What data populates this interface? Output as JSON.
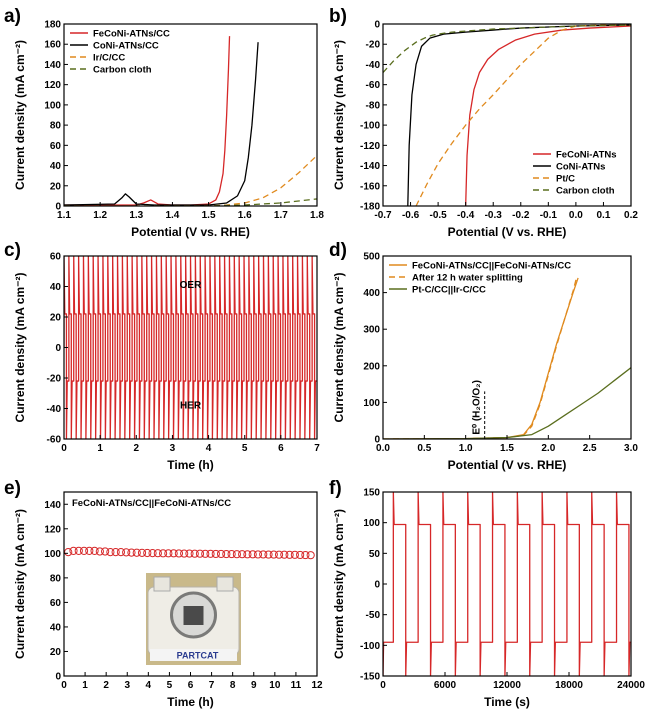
{
  "chart_data": [
    {
      "id": "a",
      "letter": "a)",
      "type": "line",
      "xlabel": "Potential (V vs. RHE)",
      "ylabel": "Current density (mA cm⁻²)",
      "xlim": [
        1.1,
        1.8
      ],
      "ylim": [
        0,
        180
      ],
      "xticks": [
        1.1,
        1.2,
        1.3,
        1.4,
        1.5,
        1.6,
        1.7,
        1.8
      ],
      "yticks": [
        0,
        20,
        40,
        60,
        80,
        100,
        120,
        140,
        160,
        180
      ],
      "legend_position": "top-left",
      "grid": false,
      "series": [
        {
          "name": "FeCoNi-ATNs/CC",
          "color": "#d62728",
          "dash": "solid",
          "x": [
            1.1,
            1.3,
            1.32,
            1.34,
            1.36,
            1.4,
            1.45,
            1.5,
            1.52,
            1.53,
            1.54,
            1.545,
            1.55,
            1.555,
            1.558
          ],
          "y": [
            1,
            1,
            3,
            6,
            2,
            1,
            1,
            2,
            6,
            14,
            32,
            55,
            90,
            135,
            168
          ]
        },
        {
          "name": "CoNi-ATNs/CC",
          "color": "#000000",
          "dash": "solid",
          "x": [
            1.1,
            1.24,
            1.26,
            1.27,
            1.28,
            1.3,
            1.35,
            1.5,
            1.55,
            1.58,
            1.6,
            1.61,
            1.62,
            1.63,
            1.637
          ],
          "y": [
            1,
            2,
            8,
            12,
            9,
            2,
            1,
            1,
            3,
            10,
            25,
            48,
            80,
            125,
            162
          ]
        },
        {
          "name": "Ir/C/CC",
          "color": "#e08a1e",
          "dash": "dashed",
          "x": [
            1.1,
            1.5,
            1.55,
            1.6,
            1.65,
            1.7,
            1.75,
            1.8
          ],
          "y": [
            0,
            0,
            1,
            3,
            8,
            18,
            33,
            50
          ]
        },
        {
          "name": "Carbon cloth",
          "color": "#5a6e1e",
          "dash": "dashed",
          "x": [
            1.1,
            1.5,
            1.6,
            1.7,
            1.8
          ],
          "y": [
            0,
            0,
            1,
            3,
            7
          ]
        }
      ]
    },
    {
      "id": "b",
      "letter": "b)",
      "type": "line",
      "xlabel": "Potential (V vs. RHE)",
      "ylabel": "Current density (mA cm⁻²)",
      "xlim": [
        -0.7,
        0.2
      ],
      "ylim": [
        -180,
        0
      ],
      "xticks": [
        -0.7,
        -0.6,
        -0.5,
        -0.4,
        -0.3,
        -0.2,
        -0.1,
        0.0,
        0.1,
        0.2
      ],
      "xticklabels": [
        "-0.7",
        "-0.6",
        "-0.5",
        "-0.4",
        "-0.3",
        "-0.2",
        "-0.1",
        "0.0",
        "0.1",
        "0.2"
      ],
      "yticks": [
        -180,
        -160,
        -140,
        -120,
        -100,
        -80,
        -60,
        -40,
        -20,
        0
      ],
      "legend_position": "bottom-right",
      "grid": false,
      "series": [
        {
          "name": "FeCoNi-ATNs",
          "color": "#d62728",
          "dash": "solid",
          "x": [
            -0.4,
            -0.395,
            -0.385,
            -0.37,
            -0.35,
            -0.32,
            -0.28,
            -0.22,
            -0.15,
            -0.05,
            0.05,
            0.2
          ],
          "y": [
            -180,
            -130,
            -90,
            -65,
            -48,
            -35,
            -25,
            -16,
            -10,
            -6,
            -4,
            -2
          ]
        },
        {
          "name": "CoNi-ATNs",
          "color": "#000000",
          "dash": "solid",
          "x": [
            -0.61,
            -0.605,
            -0.595,
            -0.58,
            -0.56,
            -0.53,
            -0.48,
            -0.4,
            -0.3,
            -0.2,
            -0.1,
            0.0,
            0.2
          ],
          "y": [
            -180,
            -120,
            -70,
            -40,
            -22,
            -14,
            -10,
            -8,
            -6,
            -4,
            -3,
            -2,
            -1
          ]
        },
        {
          "name": "Pt/C",
          "color": "#e08a1e",
          "dash": "dashed",
          "x": [
            -0.58,
            -0.54,
            -0.5,
            -0.45,
            -0.4,
            -0.35,
            -0.3,
            -0.25,
            -0.2,
            -0.15,
            -0.1,
            -0.05,
            0.0,
            0.1,
            0.2
          ],
          "y": [
            -180,
            -158,
            -138,
            -118,
            -100,
            -84,
            -70,
            -55,
            -40,
            -27,
            -14,
            -6,
            -2,
            -1,
            -1
          ]
        },
        {
          "name": "Carbon cloth",
          "color": "#5a6e1e",
          "dash": "dashed",
          "x": [
            -0.7,
            -0.66,
            -0.62,
            -0.58,
            -0.55,
            -0.52,
            -0.5,
            -0.45,
            -0.3,
            0.0,
            0.2
          ],
          "y": [
            -48,
            -36,
            -26,
            -18,
            -14,
            -11,
            -10,
            -8,
            -5,
            -2,
            -1
          ]
        }
      ]
    },
    {
      "id": "c",
      "letter": "c)",
      "type": "line",
      "xlabel": "Time (h)",
      "ylabel": "Current density (mA cm⁻²)",
      "xlim": [
        0,
        7
      ],
      "ylim": [
        -60,
        60
      ],
      "xticks": [
        0,
        1,
        2,
        3,
        4,
        5,
        6,
        7
      ],
      "yticks": [
        -60,
        -40,
        -20,
        0,
        20,
        40,
        60
      ],
      "annotations": [
        "OER",
        "HER"
      ],
      "pattern": {
        "cycles": 52,
        "oer_level": 22,
        "her_level": -22,
        "spike_max": 60,
        "spike_min": -60
      },
      "series": [
        {
          "name": "",
          "color": "#d62728",
          "dash": "solid"
        }
      ]
    },
    {
      "id": "d",
      "letter": "d)",
      "type": "line",
      "xlabel": "Potential (V vs. RHE)",
      "ylabel": "Current density (mA cm⁻²)",
      "xlim": [
        0,
        3.0
      ],
      "ylim": [
        0,
        500
      ],
      "xticks": [
        0,
        0.5,
        1.0,
        1.5,
        2.0,
        2.5,
        3.0
      ],
      "xticklabels": [
        "0.0",
        "0.5",
        "1.0",
        "1.5",
        "2.0",
        "2.5",
        "3.0"
      ],
      "yticks": [
        0,
        100,
        200,
        300,
        400,
        500
      ],
      "legend_position": "top-left",
      "grid": false,
      "annotation": "E⁰ (H₂O/O₂)",
      "annotation_x": 1.23,
      "series": [
        {
          "name": "FeCoNi-ATNs/CC||FeCoNi-ATNs/CC",
          "color": "#e08a1e",
          "dash": "solid",
          "x": [
            0,
            1.0,
            1.5,
            1.7,
            1.8,
            1.9,
            2.0,
            2.1,
            2.2,
            2.3,
            2.36
          ],
          "y": [
            0,
            1,
            4,
            12,
            40,
            100,
            180,
            260,
            330,
            400,
            440
          ]
        },
        {
          "name": "After 12 h water splitting",
          "color": "#e08a1e",
          "dash": "dashed",
          "x": [
            0,
            1.0,
            1.5,
            1.7,
            1.8,
            1.9,
            2.0,
            2.1,
            2.2,
            2.3,
            2.34
          ],
          "y": [
            0,
            1,
            4,
            10,
            35,
            95,
            175,
            255,
            330,
            405,
            440
          ]
        },
        {
          "name": "Pt-C/CC||Ir-C/CC",
          "color": "#5a6e1e",
          "dash": "solid",
          "x": [
            0,
            1.0,
            1.5,
            1.8,
            2.0,
            2.2,
            2.4,
            2.6,
            2.8,
            3.0
          ],
          "y": [
            0,
            1,
            4,
            12,
            35,
            65,
            95,
            125,
            160,
            195
          ]
        }
      ]
    },
    {
      "id": "e",
      "letter": "e)",
      "type": "scatter",
      "title": "FeCoNi-ATNs/CC||FeCoNi-ATNs/CC",
      "xlabel": "Time (h)",
      "ylabel": "Current density (mA cm⁻²)",
      "xlim": [
        0,
        12
      ],
      "ylim": [
        0,
        150
      ],
      "xticks": [
        0,
        1,
        2,
        3,
        4,
        5,
        6,
        7,
        8,
        9,
        10,
        11,
        12
      ],
      "yticks": [
        0,
        20,
        40,
        60,
        80,
        100,
        120,
        140
      ],
      "inset_logo": "PARTCAT",
      "series": [
        {
          "name": "",
          "color": "#d62728",
          "marker": "open-circle",
          "x": [
            0.2,
            0.45,
            0.7,
            0.95,
            1.2,
            1.45,
            1.7,
            1.95,
            2.2,
            2.45,
            2.7,
            2.95,
            3.2,
            3.45,
            3.7,
            3.95,
            4.2,
            4.45,
            4.7,
            4.95,
            5.2,
            5.45,
            5.7,
            5.95,
            6.2,
            6.45,
            6.7,
            6.95,
            7.2,
            7.45,
            7.7,
            7.95,
            8.2,
            8.45,
            8.7,
            8.95,
            9.2,
            9.45,
            9.7,
            9.95,
            10.2,
            10.45,
            10.7,
            10.95,
            11.2,
            11.45,
            11.7
          ],
          "y": [
            101,
            102,
            102,
            102,
            102,
            102,
            101.5,
            101.5,
            101,
            101,
            101,
            100.8,
            100.6,
            100.5,
            100.4,
            100.3,
            100.2,
            100.1,
            100,
            100,
            100,
            99.9,
            99.8,
            99.8,
            99.7,
            99.7,
            99.6,
            99.6,
            99.5,
            99.5,
            99.4,
            99.4,
            99.3,
            99.3,
            99.2,
            99.2,
            99.1,
            99.1,
            99.0,
            99.0,
            98.9,
            98.9,
            98.8,
            98.8,
            98.7,
            98.6,
            98.5
          ]
        }
      ]
    },
    {
      "id": "f",
      "letter": "f)",
      "type": "line",
      "xlabel": "Time (s)",
      "ylabel": "Current density (mA cm⁻²)",
      "xlim": [
        0,
        24000
      ],
      "ylim": [
        -150,
        150
      ],
      "xticks": [
        0,
        6000,
        12000,
        18000,
        24000
      ],
      "yticks": [
        -150,
        -100,
        -50,
        0,
        50,
        100,
        150
      ],
      "pattern": {
        "half_period": 1200,
        "start": 1000,
        "high": 97,
        "low": -95,
        "spike_max": 150,
        "spike_min": -150
      },
      "series": [
        {
          "name": "",
          "color": "#d62728",
          "dash": "solid"
        }
      ]
    }
  ]
}
